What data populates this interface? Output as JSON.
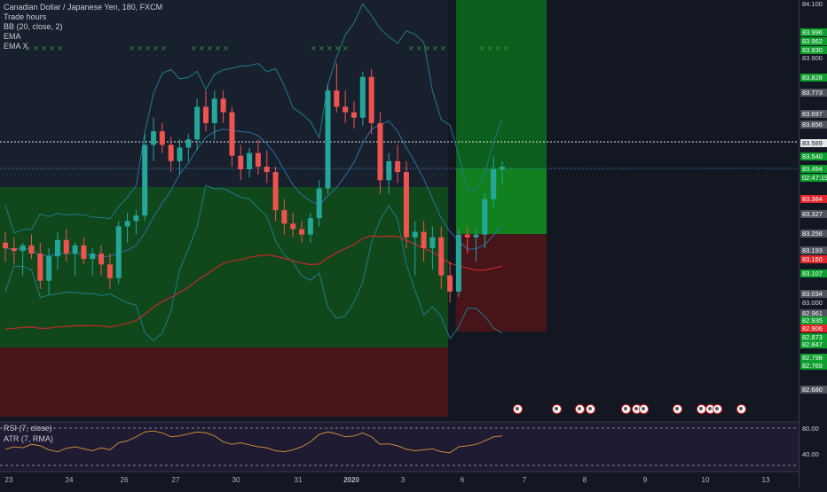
{
  "legend": {
    "symbol": "Canadian Dollar / Japanese Yen, 180, FXCM",
    "ind1": "Trade hours",
    "ind2": "BB (20, close, 2)",
    "ind3": "EMA",
    "ind4": "EMA X"
  },
  "indicators": {
    "rsi": "RSI (7, close)",
    "atr": "ATR (7, RMA)",
    "rsi_levels": [
      "80.00",
      "40.00"
    ]
  },
  "price_axis": [
    {
      "text": "84.100",
      "style": "plain"
    },
    {
      "text": "83.996",
      "style": "green"
    },
    {
      "text": "83.962",
      "style": "green"
    },
    {
      "text": "83.930",
      "style": "green"
    },
    {
      "text": "83.900",
      "style": "plain"
    },
    {
      "text": "83.828",
      "style": "green"
    },
    {
      "text": "83.773",
      "style": "gray"
    },
    {
      "text": "83.697",
      "style": "gray"
    },
    {
      "text": "83.656",
      "style": "gray"
    },
    {
      "text": "83.589",
      "style": "white"
    },
    {
      "text": "83.540",
      "style": "green"
    },
    {
      "text": "83.494",
      "style": "green"
    },
    {
      "text": "02:47:19",
      "style": "green"
    },
    {
      "text": "83.384",
      "style": "red"
    },
    {
      "text": "83.327",
      "style": "gray"
    },
    {
      "text": "83.256",
      "style": "gray"
    },
    {
      "text": "83.193",
      "style": "gray"
    },
    {
      "text": "83.160",
      "style": "red"
    },
    {
      "text": "83.107",
      "style": "green"
    },
    {
      "text": "83.034",
      "style": "gray"
    },
    {
      "text": "83.000",
      "style": "plain"
    },
    {
      "text": "82.961",
      "style": "gray"
    },
    {
      "text": "82.935",
      "style": "green"
    },
    {
      "text": "82.906",
      "style": "red"
    },
    {
      "text": "82.873",
      "style": "green"
    },
    {
      "text": "82.847",
      "style": "green"
    },
    {
      "text": "82.798",
      "style": "green"
    },
    {
      "text": "82.769",
      "style": "green"
    },
    {
      "text": "82.680",
      "style": "gray"
    }
  ],
  "time_axis": [
    "23",
    "24",
    "26",
    "27",
    "30",
    "31",
    "2020",
    "3",
    "6",
    "7",
    "8",
    "9",
    "10",
    "13"
  ],
  "chart_data": {
    "type": "candlestick",
    "y_range": [
      82.58,
      84.1
    ],
    "current_price": 83.494,
    "countdown": "02:47:19",
    "horizontal_line": 83.589,
    "candles": [
      {
        "o": 83.22,
        "h": 83.26,
        "l": 83.15,
        "c": 83.2
      },
      {
        "o": 83.2,
        "h": 83.24,
        "l": 83.14,
        "c": 83.19
      },
      {
        "o": 83.19,
        "h": 83.22,
        "l": 83.1,
        "c": 83.21
      },
      {
        "o": 83.21,
        "h": 83.25,
        "l": 83.16,
        "c": 83.18
      },
      {
        "o": 83.18,
        "h": 83.22,
        "l": 83.05,
        "c": 83.08
      },
      {
        "o": 83.08,
        "h": 83.2,
        "l": 83.03,
        "c": 83.17
      },
      {
        "o": 83.17,
        "h": 83.26,
        "l": 83.12,
        "c": 83.23
      },
      {
        "o": 83.23,
        "h": 83.27,
        "l": 83.15,
        "c": 83.18
      },
      {
        "o": 83.18,
        "h": 83.22,
        "l": 83.1,
        "c": 83.21
      },
      {
        "o": 83.21,
        "h": 83.24,
        "l": 83.14,
        "c": 83.16
      },
      {
        "o": 83.16,
        "h": 83.2,
        "l": 83.1,
        "c": 83.18
      },
      {
        "o": 83.18,
        "h": 83.21,
        "l": 83.1,
        "c": 83.14
      },
      {
        "o": 83.14,
        "h": 83.18,
        "l": 83.05,
        "c": 83.09
      },
      {
        "o": 83.09,
        "h": 83.3,
        "l": 83.07,
        "c": 83.28
      },
      {
        "o": 83.28,
        "h": 83.33,
        "l": 83.22,
        "c": 83.3
      },
      {
        "o": 83.3,
        "h": 83.34,
        "l": 83.25,
        "c": 83.32
      },
      {
        "o": 83.32,
        "h": 83.62,
        "l": 83.3,
        "c": 83.58
      },
      {
        "o": 83.58,
        "h": 83.68,
        "l": 83.52,
        "c": 83.63
      },
      {
        "o": 83.63,
        "h": 83.66,
        "l": 83.55,
        "c": 83.58
      },
      {
        "o": 83.58,
        "h": 83.61,
        "l": 83.48,
        "c": 83.52
      },
      {
        "o": 83.52,
        "h": 83.6,
        "l": 83.47,
        "c": 83.57
      },
      {
        "o": 83.57,
        "h": 83.62,
        "l": 83.52,
        "c": 83.6
      },
      {
        "o": 83.6,
        "h": 83.75,
        "l": 83.56,
        "c": 83.72
      },
      {
        "o": 83.72,
        "h": 83.78,
        "l": 83.63,
        "c": 83.66
      },
      {
        "o": 83.66,
        "h": 83.78,
        "l": 83.6,
        "c": 83.75
      },
      {
        "o": 83.75,
        "h": 83.78,
        "l": 83.66,
        "c": 83.7
      },
      {
        "o": 83.7,
        "h": 83.72,
        "l": 83.5,
        "c": 83.54
      },
      {
        "o": 83.54,
        "h": 83.58,
        "l": 83.45,
        "c": 83.49
      },
      {
        "o": 83.49,
        "h": 83.57,
        "l": 83.46,
        "c": 83.55
      },
      {
        "o": 83.55,
        "h": 83.6,
        "l": 83.47,
        "c": 83.5
      },
      {
        "o": 83.5,
        "h": 83.56,
        "l": 83.44,
        "c": 83.48
      },
      {
        "o": 83.48,
        "h": 83.5,
        "l": 83.3,
        "c": 83.34
      },
      {
        "o": 83.34,
        "h": 83.38,
        "l": 83.25,
        "c": 83.29
      },
      {
        "o": 83.29,
        "h": 83.33,
        "l": 83.24,
        "c": 83.27
      },
      {
        "o": 83.27,
        "h": 83.3,
        "l": 83.22,
        "c": 83.25
      },
      {
        "o": 83.25,
        "h": 83.33,
        "l": 83.22,
        "c": 83.31
      },
      {
        "o": 83.31,
        "h": 83.45,
        "l": 83.28,
        "c": 83.42
      },
      {
        "o": 83.42,
        "h": 83.8,
        "l": 83.4,
        "c": 83.78
      },
      {
        "o": 83.78,
        "h": 83.88,
        "l": 83.7,
        "c": 83.72
      },
      {
        "o": 83.72,
        "h": 83.78,
        "l": 83.66,
        "c": 83.7
      },
      {
        "o": 83.7,
        "h": 83.74,
        "l": 83.64,
        "c": 83.68
      },
      {
        "o": 83.68,
        "h": 83.85,
        "l": 83.65,
        "c": 83.83
      },
      {
        "o": 83.83,
        "h": 83.86,
        "l": 83.62,
        "c": 83.66
      },
      {
        "o": 83.66,
        "h": 83.7,
        "l": 83.4,
        "c": 83.45
      },
      {
        "o": 83.45,
        "h": 83.55,
        "l": 83.4,
        "c": 83.52
      },
      {
        "o": 83.52,
        "h": 83.58,
        "l": 83.44,
        "c": 83.48
      },
      {
        "o": 83.48,
        "h": 83.52,
        "l": 83.2,
        "c": 83.24
      },
      {
        "o": 83.24,
        "h": 83.3,
        "l": 83.1,
        "c": 83.26
      },
      {
        "o": 83.26,
        "h": 83.3,
        "l": 83.15,
        "c": 83.2
      },
      {
        "o": 83.2,
        "h": 83.28,
        "l": 83.12,
        "c": 83.24
      },
      {
        "o": 83.24,
        "h": 83.28,
        "l": 83.05,
        "c": 83.1
      },
      {
        "o": 83.1,
        "h": 83.15,
        "l": 83.0,
        "c": 83.04
      },
      {
        "o": 83.04,
        "h": 83.27,
        "l": 83.02,
        "c": 83.25
      },
      {
        "o": 83.25,
        "h": 83.28,
        "l": 83.18,
        "c": 83.24
      },
      {
        "o": 83.24,
        "h": 83.27,
        "l": 83.15,
        "c": 83.25
      },
      {
        "o": 83.25,
        "h": 83.4,
        "l": 83.2,
        "c": 83.38
      },
      {
        "o": 83.38,
        "h": 83.54,
        "l": 83.35,
        "c": 83.49
      },
      {
        "o": 83.49,
        "h": 83.52,
        "l": 83.44,
        "c": 83.5
      }
    ]
  }
}
